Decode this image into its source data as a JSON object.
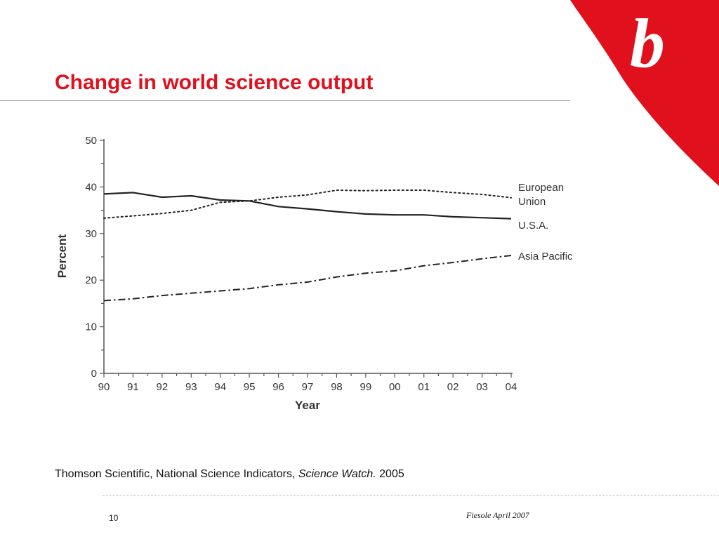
{
  "slide": {
    "title": "Change in world science output",
    "logo_letter": "b",
    "source_prefix": "Thomson Scientific, National Science Indicators, ",
    "source_italic": "Science Watch.",
    "source_suffix": " 2005",
    "page_number": "10",
    "footer_note": "Fiesole April 2007"
  },
  "colors": {
    "title": "#e0101c",
    "logo": "#e0101c"
  },
  "icons": {
    "logo": "red-swoosh-b-logo"
  },
  "chart_data": {
    "type": "line",
    "title": "",
    "xlabel": "Year",
    "ylabel": "Percent",
    "x": [
      "90",
      "91",
      "92",
      "93",
      "94",
      "95",
      "96",
      "97",
      "98",
      "99",
      "00",
      "01",
      "02",
      "03",
      "04"
    ],
    "ylim": [
      0,
      50
    ],
    "yticks": [
      0,
      10,
      20,
      30,
      40,
      50
    ],
    "grid": false,
    "legend": "labels at right end of each line",
    "series": [
      {
        "name": "European Union",
        "label_lines": [
          "European",
          "Union"
        ],
        "style": "dotted",
        "values": [
          33.3,
          33.8,
          34.3,
          35.0,
          36.7,
          37.0,
          37.8,
          38.3,
          39.3,
          39.2,
          39.3,
          39.3,
          38.8,
          38.4,
          37.7
        ]
      },
      {
        "name": "U.S.A.",
        "label_lines": [
          "U.S.A."
        ],
        "style": "solid",
        "values": [
          38.5,
          38.8,
          37.8,
          38.1,
          37.2,
          37.0,
          35.8,
          35.3,
          34.7,
          34.2,
          34.0,
          34.0,
          33.6,
          33.4,
          33.2
        ]
      },
      {
        "name": "Asia Pacific",
        "label_lines": [
          "Asia Pacific"
        ],
        "style": "dashdot",
        "values": [
          15.6,
          16.0,
          16.7,
          17.2,
          17.7,
          18.2,
          19.0,
          19.6,
          20.7,
          21.5,
          22.0,
          23.1,
          23.8,
          24.6,
          25.3
        ]
      }
    ]
  }
}
